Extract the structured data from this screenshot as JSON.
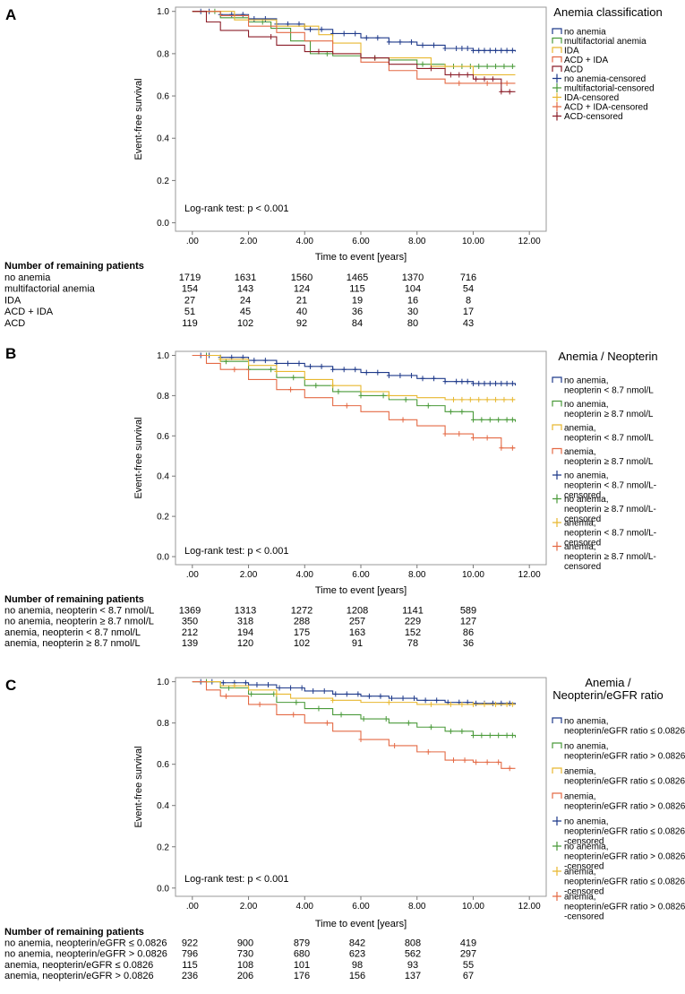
{
  "chart_data": [
    {
      "type": "line",
      "panel_label": "A",
      "title": "Anemia classification",
      "xlabel": "Time to event [years]",
      "ylabel": "Event-free survival",
      "xlim": [
        -0.6,
        12.6
      ],
      "ylim": [
        -0.04,
        1.02
      ],
      "x_ticks": [
        ".00",
        "2.00",
        "4.00",
        "6.00",
        "8.00",
        "10.00",
        "12.00"
      ],
      "y_ticks": [
        "0.0",
        "0.2",
        "0.4",
        "0.6",
        "0.8",
        "1.0"
      ],
      "annotation": "Log-rank test: p < 0.001",
      "legend": [
        "no anemia",
        "multifactorial anemia",
        "IDA",
        "ACD + IDA",
        "ACD",
        "no anemia-censored",
        "multifactorial-censored",
        "IDA-censored",
        "ACD + IDA-censored",
        "ACD-censored"
      ],
      "legend_colors": [
        "#1f3a8a",
        "#4a9a3a",
        "#e8b830",
        "#e46a45",
        "#8c1f2a",
        "#1f3a8a",
        "#4a9a3a",
        "#e8b830",
        "#e46a45",
        "#8c1f2a"
      ],
      "legend_markers": [
        "line",
        "line",
        "line",
        "line",
        "line",
        "plus",
        "plus",
        "plus",
        "plus",
        "plus"
      ],
      "series": [
        {
          "name": "no anemia",
          "color": "#1f3a8a",
          "x": [
            0,
            1,
            2,
            3,
            4,
            5,
            6,
            7,
            8,
            9,
            10,
            11.5
          ],
          "y": [
            1.0,
            0.985,
            0.965,
            0.94,
            0.915,
            0.895,
            0.875,
            0.855,
            0.84,
            0.825,
            0.815,
            0.81
          ],
          "censor_x": [
            0.3,
            0.6,
            1.0,
            1.4,
            1.8,
            2.2,
            2.6,
            3.0,
            3.4,
            3.8,
            4.2,
            4.6,
            5.0,
            5.4,
            5.8,
            6.2,
            6.6,
            7.0,
            7.4,
            7.8,
            8.2,
            8.6,
            9.0,
            9.4,
            9.6,
            9.8,
            10.0,
            10.2,
            10.4,
            10.6,
            10.8,
            11.0,
            11.2,
            11.4
          ]
        },
        {
          "name": "multifactorial anemia",
          "color": "#4a9a3a",
          "x": [
            0,
            1,
            2,
            2.8,
            3.5,
            4.2,
            5,
            6,
            7,
            8,
            9,
            11.5
          ],
          "y": [
            1.0,
            0.97,
            0.95,
            0.92,
            0.86,
            0.8,
            0.79,
            0.78,
            0.77,
            0.75,
            0.74,
            0.74
          ],
          "censor_x": [
            0.8,
            2.5,
            4.8,
            6.5,
            8.2,
            9.3,
            9.6,
            9.9,
            10.2,
            10.5,
            10.8,
            11.1,
            11.4
          ]
        },
        {
          "name": "IDA",
          "color": "#e8b830",
          "x": [
            0,
            1.5,
            3,
            4.5,
            5,
            6,
            7.5,
            8.5,
            10,
            11.5
          ],
          "y": [
            1.0,
            0.96,
            0.93,
            0.89,
            0.85,
            0.78,
            0.78,
            0.74,
            0.7,
            0.7
          ],
          "censor_x": [
            4.0,
            9.0
          ]
        },
        {
          "name": "ACD + IDA",
          "color": "#e46a45",
          "x": [
            0,
            1,
            2,
            3,
            4,
            5,
            6,
            7,
            8,
            9,
            10,
            11.5
          ],
          "y": [
            1.0,
            0.98,
            0.93,
            0.9,
            0.86,
            0.8,
            0.76,
            0.72,
            0.68,
            0.66,
            0.66,
            0.66
          ],
          "censor_x": [
            9.5,
            10.5,
            11.2
          ]
        },
        {
          "name": "ACD",
          "color": "#8c1f2a",
          "x": [
            0,
            0.5,
            1,
            2,
            3,
            4,
            5,
            6,
            7,
            8,
            9,
            10,
            11,
            11.5
          ],
          "y": [
            1.0,
            0.95,
            0.91,
            0.88,
            0.84,
            0.81,
            0.8,
            0.78,
            0.75,
            0.73,
            0.7,
            0.68,
            0.62,
            0.62
          ],
          "censor_x": [
            2.8,
            4.5,
            6.5,
            8.5,
            9.2,
            9.5,
            9.8,
            10.1,
            10.4,
            10.7,
            11.0,
            11.3
          ]
        }
      ],
      "risk_table": {
        "header": "Number of remaining patients",
        "rows": [
          {
            "label": "no anemia",
            "values": [
              "1719",
              "1631",
              "1560",
              "1465",
              "1370",
              "716"
            ]
          },
          {
            "label": "multifactorial anemia",
            "values": [
              "154",
              "143",
              "124",
              "115",
              "104",
              "54"
            ]
          },
          {
            "label": "IDA",
            "values": [
              "27",
              "24",
              "21",
              "19",
              "16",
              "8"
            ]
          },
          {
            "label": "ACD + IDA",
            "values": [
              "51",
              "45",
              "40",
              "36",
              "30",
              "17"
            ]
          },
          {
            "label": "ACD",
            "values": [
              "119",
              "102",
              "92",
              "84",
              "80",
              "43"
            ]
          }
        ]
      }
    },
    {
      "type": "line",
      "panel_label": "B",
      "title": "Anemia / Neopterin",
      "xlabel": "Time to event [years]",
      "ylabel": "Event-free survival",
      "xlim": [
        -0.6,
        12.6
      ],
      "ylim": [
        -0.04,
        1.02
      ],
      "x_ticks": [
        ".00",
        "2.00",
        "4.00",
        "6.00",
        "8.00",
        "10.00",
        "12.00"
      ],
      "y_ticks": [
        "0.0",
        "0.2",
        "0.4",
        "0.6",
        "0.8",
        "1.0"
      ],
      "annotation": "Log-rank test: p < 0.001",
      "legend": [
        "no anemia,|neopterin < 8.7 nmol/L",
        "no anemia,|neopterin ≥ 8.7 nmol/L",
        "anemia,|neopterin < 8.7 nmol/L",
        "anemia,|neopterin ≥ 8.7 nmol/L",
        "no anemia,|neopterin < 8.7 nmol/L-|censored",
        "no anemia,|neopterin ≥ 8.7 nmol/L-|censored",
        "anemia,|neopterin < 8.7 nmol/L-|censored",
        "anemia,|neopterin ≥ 8.7 nmol/L-|censored"
      ],
      "legend_colors": [
        "#1f3a8a",
        "#4a9a3a",
        "#e8b830",
        "#e46a45",
        "#1f3a8a",
        "#4a9a3a",
        "#e8b830",
        "#e46a45"
      ],
      "legend_markers": [
        "line",
        "line",
        "line",
        "line",
        "plus",
        "plus",
        "plus",
        "plus"
      ],
      "series": [
        {
          "name": "no anemia, neopterin < 8.7 nmol/L",
          "color": "#1f3a8a",
          "x": [
            0,
            1,
            2,
            3,
            4,
            5,
            6,
            7,
            8,
            9,
            10,
            11.5
          ],
          "y": [
            1.0,
            0.99,
            0.975,
            0.96,
            0.945,
            0.93,
            0.915,
            0.9,
            0.885,
            0.87,
            0.86,
            0.85
          ],
          "censor_x": [
            0.3,
            0.6,
            1.0,
            1.4,
            1.8,
            2.2,
            2.6,
            3.0,
            3.4,
            3.8,
            4.2,
            4.6,
            5.0,
            5.4,
            5.8,
            6.2,
            6.6,
            7.0,
            7.4,
            7.8,
            8.2,
            8.6,
            9.0,
            9.4,
            9.6,
            9.8,
            10.0,
            10.2,
            10.4,
            10.6,
            10.8,
            11.0,
            11.2,
            11.4
          ]
        },
        {
          "name": "no anemia, neopterin ≥ 8.7 nmol/L",
          "color": "#4a9a3a",
          "x": [
            0,
            1,
            2,
            3,
            4,
            5,
            6,
            7,
            8,
            9,
            10,
            11.5
          ],
          "y": [
            1.0,
            0.97,
            0.93,
            0.89,
            0.85,
            0.82,
            0.8,
            0.78,
            0.75,
            0.72,
            0.68,
            0.67
          ],
          "censor_x": [
            0.5,
            1.2,
            2.0,
            2.8,
            3.6,
            4.4,
            5.2,
            6.0,
            6.8,
            7.6,
            8.4,
            9.2,
            9.6,
            10.0,
            10.3,
            10.6,
            10.9,
            11.2,
            11.4
          ]
        },
        {
          "name": "anemia, neopterin < 8.7 nmol/L",
          "color": "#e8b830",
          "x": [
            0,
            1,
            2,
            3,
            4,
            5,
            6,
            7,
            8,
            9,
            10,
            11.5
          ],
          "y": [
            1.0,
            0.98,
            0.95,
            0.92,
            0.88,
            0.85,
            0.82,
            0.8,
            0.79,
            0.78,
            0.78,
            0.78
          ],
          "censor_x": [
            1.0,
            3.0,
            5.0,
            7.0,
            9.3,
            9.6,
            9.9,
            10.2,
            10.5,
            10.8,
            11.1,
            11.4
          ]
        },
        {
          "name": "anemia, neopterin ≥ 8.7 nmol/L",
          "color": "#e46a45",
          "x": [
            0,
            0.5,
            1,
            2,
            3,
            4,
            5,
            6,
            7,
            8,
            9,
            10,
            11,
            11.5
          ],
          "y": [
            1.0,
            0.96,
            0.93,
            0.88,
            0.83,
            0.79,
            0.75,
            0.72,
            0.68,
            0.65,
            0.61,
            0.59,
            0.54,
            0.54
          ],
          "censor_x": [
            1.5,
            3.5,
            5.5,
            7.5,
            9.0,
            9.5,
            10.0,
            10.5,
            11.0,
            11.4
          ]
        }
      ],
      "risk_table": {
        "header": "Number of remaining patients",
        "rows": [
          {
            "label": "no anemia, neopterin < 8.7 nmol/L",
            "values": [
              "1369",
              "1313",
              "1272",
              "1208",
              "1141",
              "589"
            ]
          },
          {
            "label": "no anemia, neopterin ≥ 8.7 nmol/L",
            "values": [
              "350",
              "318",
              "288",
              "257",
              "229",
              "127"
            ]
          },
          {
            "label": "anemia, neopterin < 8.7 nmol/L",
            "values": [
              "212",
              "194",
              "175",
              "163",
              "152",
              "86"
            ]
          },
          {
            "label": "anemia, neopterin ≥ 8.7 nmol/L",
            "values": [
              "139",
              "120",
              "102",
              "91",
              "78",
              "36"
            ]
          }
        ]
      }
    },
    {
      "type": "line",
      "panel_label": "C",
      "title": "Anemia /|Neopterin/eGFR ratio",
      "xlabel": "Time to event [years]",
      "ylabel": "Event-free survival",
      "xlim": [
        -0.6,
        12.6
      ],
      "ylim": [
        -0.04,
        1.02
      ],
      "x_ticks": [
        ".00",
        "2.00",
        "4.00",
        "6.00",
        "8.00",
        "10.00",
        "12.00"
      ],
      "y_ticks": [
        "0.0",
        "0.2",
        "0.4",
        "0.6",
        "0.8",
        "1.0"
      ],
      "annotation": "Log-rank test: p < 0.001",
      "legend": [
        "no anemia,|neopterin/eGFR ratio ≤ 0.0826",
        "no anemia,|neopterin/eGFR ratio > 0.0826",
        "anemia,|neopterin/eGFR ratio ≤ 0.0826",
        "anemia,|neopterin/eGFR ratio > 0.0826",
        "no anemia,|neopterin/eGFR ratio ≤ 0.0826|-censored",
        "no anemia,|neopterin/eGFR ratio > 0.0826|-censored",
        "anemia,|neopterin/eGFR ratio ≤ 0.0826|-censored",
        "anemia,|neopterin/eGFR ratio > 0.0826|-censored"
      ],
      "legend_colors": [
        "#1f3a8a",
        "#4a9a3a",
        "#e8b830",
        "#e46a45",
        "#1f3a8a",
        "#4a9a3a",
        "#e8b830",
        "#e46a45"
      ],
      "legend_markers": [
        "line",
        "line",
        "line",
        "line",
        "plus",
        "plus",
        "plus",
        "plus"
      ],
      "series": [
        {
          "name": "no anemia, neopterin/eGFR ratio ≤ 0.0826",
          "color": "#1f3a8a",
          "x": [
            0,
            1,
            2,
            3,
            4,
            5,
            6,
            7,
            8,
            9,
            10,
            11.5
          ],
          "y": [
            1.0,
            0.995,
            0.985,
            0.97,
            0.955,
            0.94,
            0.93,
            0.92,
            0.91,
            0.9,
            0.895,
            0.89
          ],
          "censor_x": [
            0.3,
            0.7,
            1.1,
            1.5,
            1.9,
            2.3,
            2.7,
            3.1,
            3.5,
            3.9,
            4.3,
            4.7,
            5.1,
            5.5,
            5.9,
            6.3,
            6.7,
            7.1,
            7.5,
            7.9,
            8.3,
            8.7,
            9.1,
            9.5,
            9.8,
            10.1,
            10.4,
            10.7,
            11.0,
            11.3
          ]
        },
        {
          "name": "no anemia, neopterin/eGFR ratio > 0.0826",
          "color": "#4a9a3a",
          "x": [
            0,
            1,
            2,
            3,
            4,
            5,
            6,
            7,
            8,
            9,
            10,
            11.5
          ],
          "y": [
            1.0,
            0.97,
            0.94,
            0.9,
            0.87,
            0.84,
            0.82,
            0.8,
            0.78,
            0.76,
            0.74,
            0.73
          ],
          "censor_x": [
            0.5,
            1.3,
            2.1,
            2.9,
            3.7,
            4.5,
            5.3,
            6.1,
            6.9,
            7.7,
            8.5,
            9.2,
            9.6,
            10.0,
            10.3,
            10.6,
            10.9,
            11.2,
            11.4
          ]
        },
        {
          "name": "anemia, neopterin/eGFR ratio ≤ 0.0826",
          "color": "#e8b830",
          "x": [
            0,
            1,
            2,
            3,
            3.5,
            5,
            6,
            7,
            8,
            9,
            10,
            11.5
          ],
          "y": [
            1.0,
            0.98,
            0.96,
            0.94,
            0.92,
            0.91,
            0.9,
            0.9,
            0.89,
            0.89,
            0.89,
            0.89
          ],
          "censor_x": [
            1.5,
            3.0,
            5.0,
            7.0,
            8.5,
            9.2,
            9.6,
            10.0,
            10.4,
            10.8,
            11.2,
            11.4
          ]
        },
        {
          "name": "anemia, neopterin/eGFR ratio > 0.0826",
          "color": "#e46a45",
          "x": [
            0,
            0.5,
            1,
            2,
            3,
            4,
            5,
            6,
            7,
            8,
            9,
            10,
            11,
            11.5
          ],
          "y": [
            1.0,
            0.96,
            0.93,
            0.89,
            0.84,
            0.8,
            0.76,
            0.72,
            0.69,
            0.66,
            0.62,
            0.61,
            0.58,
            0.58
          ],
          "censor_x": [
            1.2,
            2.4,
            3.6,
            4.8,
            6.0,
            7.2,
            8.4,
            9.3,
            9.7,
            10.1,
            10.5,
            10.9,
            11.3
          ]
        }
      ],
      "risk_table": {
        "header": "Number of remaining patients",
        "rows": [
          {
            "label": "no anemia, neopterin/eGFR ≤ 0.0826",
            "values": [
              "922",
              "900",
              "879",
              "842",
              "808",
              "419"
            ]
          },
          {
            "label": "no anemia, neopterin/eGFR > 0.0826",
            "values": [
              "796",
              "730",
              "680",
              "623",
              "562",
              "297"
            ]
          },
          {
            "label": "anemia, neopterin/eGFR ≤ 0.0826",
            "values": [
              "115",
              "108",
              "101",
              "98",
              "93",
              "55"
            ]
          },
          {
            "label": "anemia, neopterin/eGFR > 0.0826",
            "values": [
              "236",
              "206",
              "176",
              "156",
              "137",
              "67"
            ]
          }
        ]
      }
    }
  ]
}
